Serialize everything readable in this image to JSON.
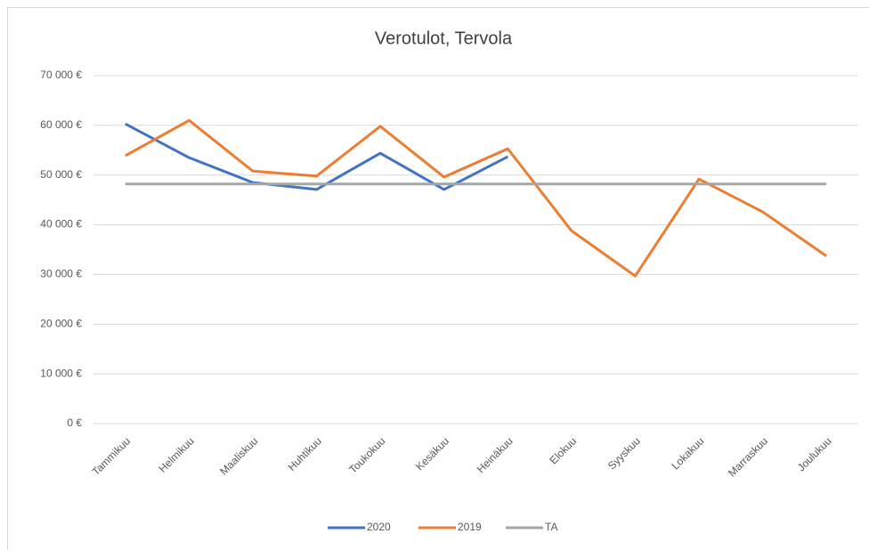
{
  "chart_data": {
    "type": "line",
    "title": "Verotulot, Tervola",
    "categories": [
      "Tammikuu",
      "Helmikuu",
      "Maaliskuu",
      "Huhtikuu",
      "Toukokuu",
      "Kesäkuu",
      "Heinäkuu",
      "Elokuu",
      "Syyskuu",
      "Lokakuu",
      "Marraskuu",
      "Joulukuu"
    ],
    "series": [
      {
        "name": "2020",
        "color": "#4472c4",
        "values": [
          60300,
          53500,
          48500,
          47100,
          54400,
          47100,
          53700,
          null,
          null,
          null,
          null,
          null
        ]
      },
      {
        "name": "2019",
        "color": "#ed7d31",
        "values": [
          53900,
          61000,
          50800,
          49800,
          59800,
          49600,
          55300,
          38800,
          29700,
          49200,
          42600,
          33700
        ]
      },
      {
        "name": "TA",
        "color": "#a5a5a5",
        "values": [
          48200,
          48200,
          48200,
          48200,
          48200,
          48200,
          48200,
          48200,
          48200,
          48200,
          48200,
          48200
        ]
      }
    ],
    "ylim": [
      0,
      70000
    ],
    "yticks": [
      {
        "value": 0,
        "label": "0 €"
      },
      {
        "value": 10000,
        "label": "10 000 €"
      },
      {
        "value": 20000,
        "label": "20 000 €"
      },
      {
        "value": 30000,
        "label": "30 000 €"
      },
      {
        "value": 40000,
        "label": "40 000 €"
      },
      {
        "value": 50000,
        "label": "50 000 €"
      },
      {
        "value": 60000,
        "label": "60 000 €"
      },
      {
        "value": 70000,
        "label": "70 000 €"
      }
    ],
    "grid": true,
    "legend": "bottom"
  }
}
